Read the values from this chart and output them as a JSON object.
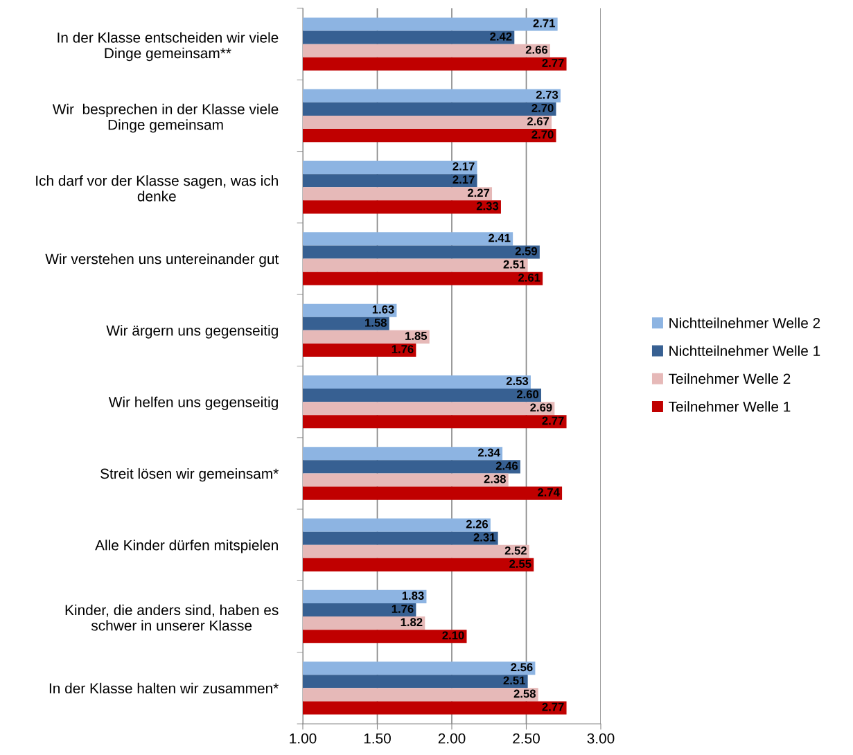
{
  "chart_data": {
    "type": "bar",
    "orientation": "horizontal",
    "categories": [
      "In der Klasse entscheiden wir viele\nDinge gemeinsam**",
      "Wir  besprechen in der Klasse viele\nDinge gemeinsam",
      "Ich darf vor der Klasse sagen, was ich\ndenke",
      "Wir verstehen uns untereinander gut",
      "Wir ärgern uns gegenseitig",
      "Wir helfen uns gegenseitig",
      "Streit lösen wir gemeinsam*",
      "Alle Kinder dürfen mitspielen",
      "Kinder, die anders sind, haben es\nschwer in unserer Klasse",
      "In der Klasse halten wir zusammen*"
    ],
    "series": [
      {
        "name": "Nichtteilnehmer Welle 2",
        "color": "#8db4e2",
        "values": [
          2.71,
          2.73,
          2.17,
          2.41,
          1.63,
          2.53,
          2.34,
          2.26,
          1.83,
          2.56
        ],
        "value_labels": [
          "2.71",
          "2.73",
          "2.17",
          "2.41",
          "1.63",
          "2.53",
          "2.34",
          "2.26",
          "1.83",
          "2.56"
        ]
      },
      {
        "name": "Nichtteilnehmer Welle 1",
        "color": "#376092",
        "values": [
          2.42,
          2.7,
          2.17,
          2.59,
          1.58,
          2.6,
          2.46,
          2.31,
          1.76,
          2.51
        ],
        "value_labels": [
          "2.42",
          "2.70",
          "2.17",
          "2.59",
          "1.58",
          "2.60",
          "2.46",
          "2.31",
          "1.76",
          "2.51"
        ]
      },
      {
        "name": "Teilnehmer Welle 2",
        "color": "#e6b9b8",
        "values": [
          2.66,
          2.67,
          2.27,
          2.51,
          1.85,
          2.69,
          2.38,
          2.52,
          1.82,
          2.58
        ],
        "value_labels": [
          "2.66",
          "2.67",
          "2.27",
          "2.51",
          "1.85",
          "2.69",
          "2.38",
          "2.52",
          "1.82",
          "2.58"
        ]
      },
      {
        "name": "Teilnehmer Welle 1",
        "color": "#c00000",
        "values": [
          2.77,
          2.7,
          2.33,
          2.61,
          1.76,
          2.77,
          2.74,
          2.55,
          2.1,
          2.77
        ],
        "value_labels": [
          "2.77",
          "2.70",
          "2.33",
          "2.61",
          "1.76",
          "2.77",
          "2.74",
          "2.55",
          "2.10",
          "2.77"
        ]
      }
    ],
    "xlim": [
      1,
      3
    ],
    "xticks": [
      {
        "value": 1,
        "label": "1.00"
      },
      {
        "value": 1.5,
        "label": "1.50"
      },
      {
        "value": 2,
        "label": "2.00"
      },
      {
        "value": 2.5,
        "label": "2.50"
      },
      {
        "value": 3,
        "label": "3.00"
      }
    ],
    "grid": "x",
    "legend": "right"
  }
}
